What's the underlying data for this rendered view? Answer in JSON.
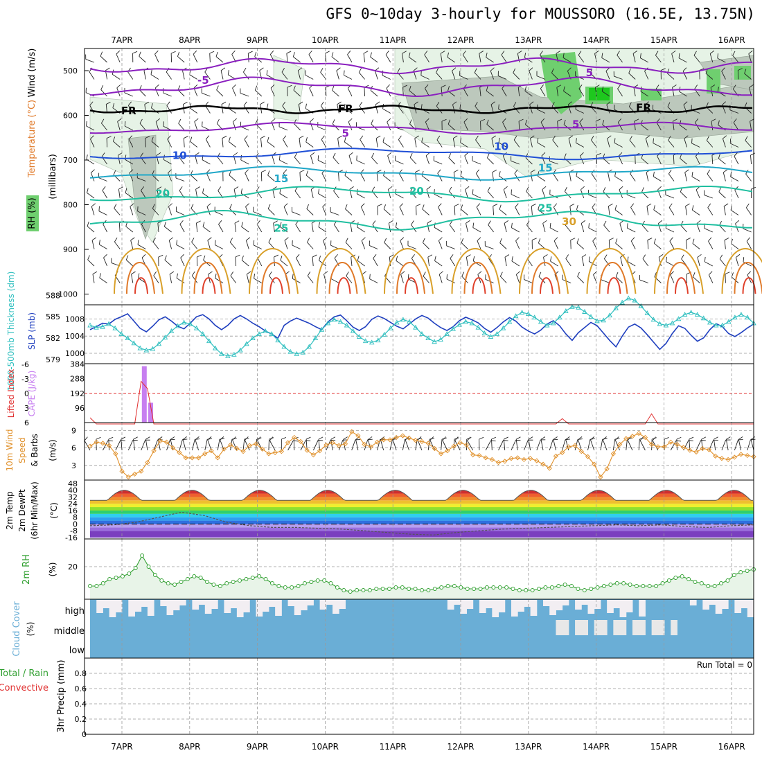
{
  "title": "GFS 0~10day 3-hourly for MOUSSORO (16.5E, 13.75N)",
  "run_total_label": "Run Total = 0",
  "cloud_levels": [
    "high",
    "middle",
    "low"
  ],
  "colors": {
    "rh_green": "#6fcf6f",
    "rh_light": "#e6f3e6",
    "rh_dark": "#bcc8bc",
    "temp_neg": "#8a1fbf",
    "temp_10": "#1f4fd6",
    "temp_15": "#1fa7c8",
    "temp_20": "#1fbfa0",
    "temp_30": "#d9a02a",
    "temp_hot": "#e0402a",
    "slp": "#1f3fbf",
    "thick": "#2fbfbf",
    "cape": "#c77ff0",
    "li": "#e03030",
    "wind10": "#e0902a",
    "rh2m": "#2f9f2f",
    "cloud": "#6aaed6"
  },
  "chart_data": [
    {
      "panel": "upper-air",
      "type": "contour",
      "ylabel_parts": [
        "RH (%)",
        "Temperature (°C)",
        "Wind (m/s)"
      ],
      "yunit_label": "(millibars)",
      "x_dates": [
        "7APR",
        "8APR",
        "9APR",
        "10APR",
        "11APR",
        "12APR",
        "13APR",
        "14APR",
        "15APR",
        "16APR"
      ],
      "yticks": [
        500,
        600,
        700,
        800,
        900,
        1000
      ],
      "ylim": [
        1000,
        450
      ],
      "contour_labels": [
        {
          "text": "-5",
          "at": [
            "8APR+0.2",
            522
          ]
        },
        {
          "text": "5",
          "at": [
            "13APR+0.9",
            505
          ]
        },
        {
          "text": "FR",
          "at": [
            "7APR+0.1",
            590
          ]
        },
        {
          "text": "FR",
          "at": [
            "10APR+0.3",
            585
          ]
        },
        {
          "text": "FR",
          "at": [
            "14APR+0.7",
            583
          ]
        },
        {
          "text": "5",
          "at": [
            "10APR+0.3",
            640
          ]
        },
        {
          "text": "5",
          "at": [
            "13APR+0.7",
            620
          ]
        },
        {
          "text": "10",
          "at": [
            "7APR+0.85",
            690
          ]
        },
        {
          "text": "10",
          "at": [
            "12APR+0.6",
            670
          ]
        },
        {
          "text": "15",
          "at": [
            "9APR+0.35",
            742
          ]
        },
        {
          "text": "15",
          "at": [
            "13APR+0.25",
            718
          ]
        },
        {
          "text": "20",
          "at": [
            "7APR+0.6",
            775
          ]
        },
        {
          "text": "20",
          "at": [
            "11APR+0.35",
            770
          ]
        },
        {
          "text": "25",
          "at": [
            "9APR+0.35",
            853
          ]
        },
        {
          "text": "25",
          "at": [
            "13APR+0.25",
            808
          ]
        },
        {
          "text": "30",
          "at": [
            "13APR+0.6",
            838
          ]
        }
      ]
    },
    {
      "panel": "slp-thickness",
      "type": "line",
      "ylabel_left": "1000-500mb Thickness (dm)",
      "ylabel_right": "SLP (mb)",
      "yticks_left": [
        579,
        582,
        585,
        588
      ],
      "yticks_right": [
        1000,
        1004,
        1008
      ],
      "series": [
        {
          "name": "SLP (mb)",
          "values": [
            1005.5,
            1006.2,
            1007.0,
            1006.8,
            1007.9,
            1008.5,
            1009.2,
            1007.5,
            1005.8,
            1005.0,
            1006.3,
            1007.8,
            1008.5,
            1007.5,
            1006.3,
            1005.7,
            1007.0,
            1008.5,
            1009.0,
            1008.0,
            1006.5,
            1005.5,
            1006.5,
            1008.0,
            1008.8,
            1008.0,
            1007.0,
            1006.2,
            1005.2,
            1004.5,
            1003.5,
            1006.5,
            1007.5,
            1008.2,
            1007.6,
            1007.0,
            1006.2,
            1005.5,
            1007.3,
            1008.5,
            1008.9,
            1007.6,
            1006.1,
            1005.3,
            1006.2,
            1007.9,
            1008.7,
            1008.1,
            1007.2,
            1006.3,
            1005.7,
            1006.8,
            1008.0,
            1008.8,
            1008.2,
            1007.0,
            1006.0,
            1005.3,
            1006.2,
            1007.6,
            1008.4,
            1007.8,
            1007.1,
            1005.8,
            1004.9,
            1006.0,
            1007.3,
            1008.3,
            1007.5,
            1006.1,
            1005.2,
            1004.5,
            1005.4,
            1006.8,
            1007.6,
            1006.4,
            1004.5,
            1003.0,
            1004.8,
            1006.0,
            1007.2,
            1006.4,
            1004.7,
            1003.0,
            1001.5,
            1004.0,
            1006.1,
            1006.8,
            1005.9,
            1004.3,
            1002.6,
            1000.9,
            1002.3,
            1004.6,
            1006.4,
            1005.8,
            1004.2,
            1002.8,
            1003.6,
            1005.5,
            1006.9,
            1006.2,
            1004.6,
            1003.9,
            1004.8,
            1005.9,
            1006.8
          ]
        },
        {
          "name": "Thickness (dm)",
          "values": [
            583.8,
            583.5,
            583.6,
            584.0,
            583.4,
            582.6,
            582.0,
            581.3,
            580.6,
            580.3,
            580.5,
            581.2,
            582.1,
            583.0,
            583.7,
            584.2,
            584.0,
            583.4,
            582.6,
            581.6,
            580.6,
            579.8,
            579.5,
            579.7,
            580.3,
            581.2,
            582.0,
            582.6,
            583.0,
            582.6,
            581.7,
            580.8,
            580.1,
            579.8,
            580.0,
            580.8,
            582.0,
            583.2,
            584.1,
            584.6,
            584.3,
            583.8,
            583.0,
            582.2,
            581.6,
            581.4,
            581.7,
            582.5,
            583.4,
            584.2,
            584.6,
            584.3,
            583.5,
            582.6,
            582.0,
            581.5,
            581.8,
            582.6,
            583.3,
            583.9,
            584.3,
            584.1,
            583.5,
            582.7,
            582.2,
            582.6,
            583.4,
            584.3,
            585.1,
            585.6,
            585.4,
            584.9,
            584.3,
            583.8,
            584.1,
            584.9,
            585.8,
            586.4,
            586.3,
            585.7,
            585.0,
            584.4,
            584.5,
            585.2,
            586.2,
            587.0,
            587.6,
            587.3,
            586.5,
            585.5,
            584.6,
            584.0,
            583.8,
            584.1,
            584.7,
            585.3,
            585.6,
            585.3,
            584.8,
            584.2,
            583.8,
            583.8,
            584.3,
            584.9,
            585.3,
            584.9,
            584.1
          ]
        }
      ]
    },
    {
      "panel": "cape-li",
      "type": "bar",
      "ylabel_left": "Lifted Index",
      "ylabel_right": "CAPE (J/kg)",
      "yticks_left": [
        -6,
        -3,
        0,
        3,
        6
      ],
      "yticks_right": [
        96,
        192,
        288,
        384
      ],
      "cape_bars": [
        {
          "time_index": 6,
          "value": 370
        },
        {
          "time_index": 7,
          "value": 130
        }
      ],
      "li_spikes": [
        {
          "time_index": 0,
          "value": 5
        },
        {
          "time_index": 6,
          "value": -2.5
        },
        {
          "time_index": 7,
          "value": -1
        },
        {
          "time_index": 74,
          "value": 5.2
        },
        {
          "time_index": 88,
          "value": 4.2
        }
      ]
    },
    {
      "panel": "wind10m",
      "type": "line",
      "ylabel": "10m Wind Speed & Barbs (m/s)",
      "yticks": [
        3,
        6,
        9
      ],
      "series": [
        {
          "name": "10m Wind Speed",
          "values": [
            6.3,
            7.0,
            6.8,
            6.4,
            5.0,
            2.0,
            1.0,
            1.5,
            2.0,
            3.5,
            5.5,
            7.2,
            7.0,
            6.0,
            5.2,
            4.3,
            4.3,
            4.3,
            5.0,
            5.5,
            4.3,
            5.8,
            6.5,
            5.9,
            5.4,
            6.4,
            6.7,
            5.8,
            5.0,
            5.2,
            5.4,
            6.9,
            7.8,
            7.1,
            5.6,
            4.8,
            5.5,
            6.5,
            6.9,
            6.4,
            6.7,
            8.8,
            8.1,
            6.6,
            6.2,
            7.0,
            7.4,
            7.4,
            7.8,
            8.1,
            7.7,
            7.3,
            7.1,
            6.8,
            5.9,
            5.0,
            5.5,
            6.3,
            6.9,
            6.5,
            4.8,
            4.7,
            4.3,
            4.0,
            3.5,
            3.7,
            4.2,
            4.3,
            4.0,
            4.2,
            3.8,
            3.2,
            2.5,
            4.6,
            5.2,
            6.2,
            6.4,
            5.4,
            4.5,
            3.2,
            1.0,
            2.4,
            5.0,
            6.6,
            7.6,
            8.0,
            8.5,
            7.8,
            6.6,
            6.2,
            6.2,
            7.0,
            6.6,
            6.1,
            5.6,
            5.3,
            5.9,
            5.7,
            4.6,
            4.2,
            4.0,
            4.4,
            4.9,
            4.7,
            4.5
          ]
        }
      ]
    },
    {
      "panel": "temp2m",
      "type": "area",
      "ylabel": "2m Temp / 2m DewPt (6hr Min/Max) (°C)",
      "yticks": [
        -16,
        -8,
        0,
        8,
        16,
        24,
        32,
        40,
        48
      ],
      "ylim": [
        -16,
        48
      ],
      "temp_min": 28,
      "temp_max": 40,
      "dewpt_values": [
        -2,
        -1,
        2,
        8,
        14,
        10,
        2,
        -2,
        -4,
        -4,
        -5,
        -6,
        -8,
        -10,
        -12,
        -13,
        -10,
        -8,
        -6,
        -5,
        -4,
        -3,
        -2,
        -1,
        -2,
        -1,
        -3,
        -4,
        -2,
        -1
      ]
    },
    {
      "panel": "rh2m",
      "type": "area",
      "ylabel": "2m RH",
      "yunit_label": "(%)",
      "yticks": [
        20
      ],
      "ylim": [
        0,
        35
      ],
      "series": [
        {
          "name": "2m RH",
          "values": [
            6,
            6,
            8,
            11,
            12,
            13,
            15,
            19,
            28,
            20,
            14,
            10,
            8,
            7,
            9,
            11,
            13,
            12,
            9,
            7,
            6,
            8,
            9,
            10,
            11,
            12,
            13,
            11,
            8,
            6,
            5,
            5,
            6,
            8,
            9,
            10,
            10,
            8,
            5,
            3,
            2,
            3,
            3,
            3,
            4,
            4,
            4,
            5,
            5,
            4,
            4,
            3,
            3,
            4,
            5,
            6,
            6,
            5,
            4,
            4,
            4,
            5,
            5,
            5,
            5,
            4,
            3,
            3,
            3,
            4,
            5,
            5,
            6,
            7,
            6,
            4,
            3,
            4,
            5,
            6,
            7,
            8,
            8,
            7,
            6,
            6,
            6,
            6,
            8,
            10,
            12,
            13,
            11,
            9,
            8,
            6,
            6,
            8,
            10,
            14,
            16,
            17,
            18
          ]
        }
      ]
    },
    {
      "panel": "cloud",
      "type": "heatmap",
      "ylabel": "Cloud Cover",
      "yunit_label": "(%)",
      "levels": [
        "high",
        "middle",
        "low"
      ]
    },
    {
      "panel": "precip",
      "type": "bar",
      "ylabel_left": "3hr Precip (mm)",
      "ylabel_outer": [
        "Total / Rain",
        "Convective"
      ],
      "yticks": [
        0,
        0.2,
        0.4,
        0.6,
        0.8
      ],
      "ylim": [
        0,
        1
      ],
      "values": []
    }
  ]
}
